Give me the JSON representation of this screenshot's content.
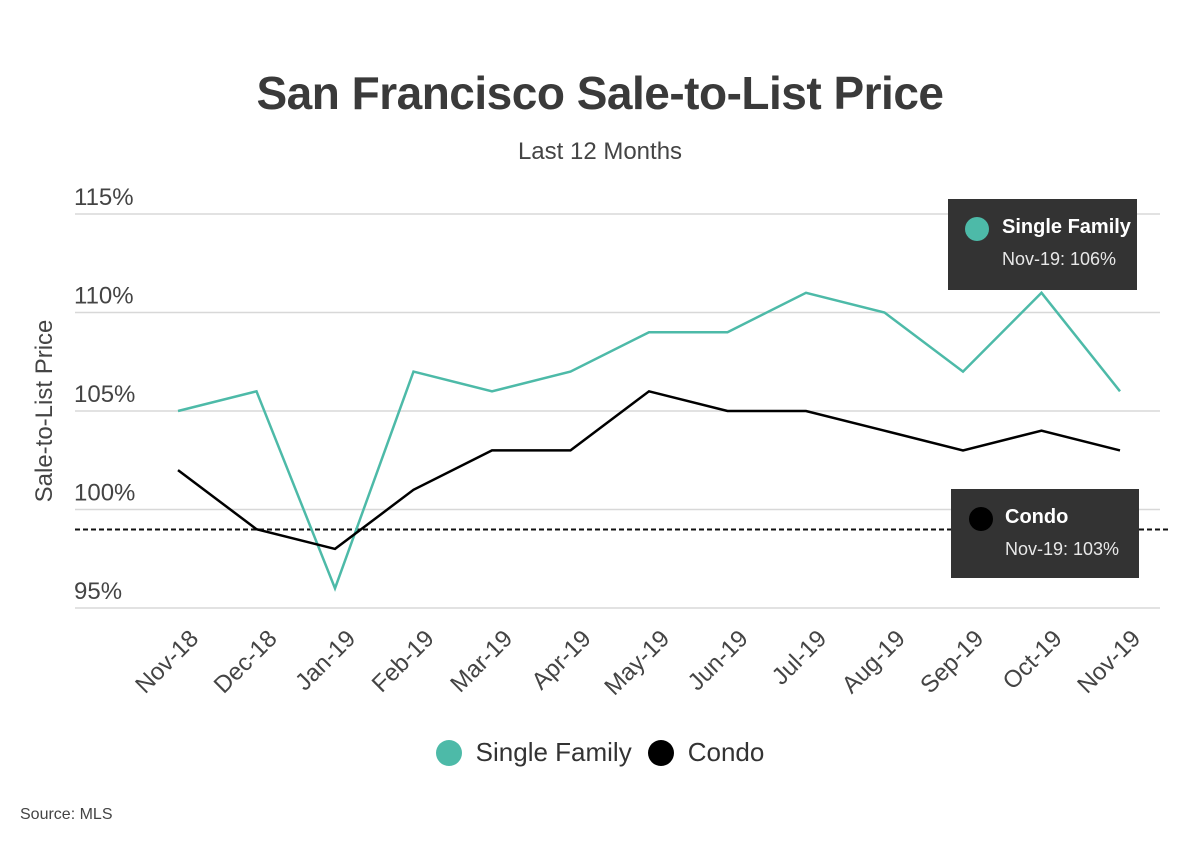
{
  "title": "San Francisco Sale-to-List Price",
  "subtitle": "Last 12 Months",
  "source": "Source:  MLS",
  "colors": {
    "single_family": "#4dbaa8",
    "condo": "#000000",
    "grid": "#d8d8d8",
    "callout_bg": "#333333"
  },
  "chart_data": {
    "type": "line",
    "x": [
      "Nov-18",
      "Dec-18",
      "Jan-19",
      "Feb-19",
      "Mar-19",
      "Apr-19",
      "May-19",
      "Jun-19",
      "Jul-19",
      "Aug-19",
      "Sep-19",
      "Oct-19",
      "Nov-19"
    ],
    "series": [
      {
        "name": "Single Family",
        "values": [
          105,
          106,
          96,
          107,
          106,
          107,
          109,
          109,
          111,
          110,
          107,
          111,
          106
        ]
      },
      {
        "name": "Condo",
        "values": [
          102,
          99,
          98,
          101,
          103,
          103,
          106,
          105,
          105,
          104,
          103,
          104,
          103
        ]
      }
    ],
    "title": "San Francisco Sale-to-List Price",
    "subtitle": "Last 12 Months",
    "ylabel": "Sale-to-List Price",
    "xlabel": "",
    "ylim": [
      95,
      115
    ],
    "yticks": [
      95,
      100,
      105,
      110,
      115
    ],
    "ytick_labels": [
      "95%",
      "100%",
      "105%",
      "110%",
      "115%"
    ],
    "reference_line": 100,
    "grid": true,
    "legend": "bottom-center"
  },
  "callouts": [
    {
      "name": "Single Family",
      "value": "Nov-19: 106%"
    },
    {
      "name": "Condo",
      "value": "Nov-19: 103%"
    }
  ]
}
